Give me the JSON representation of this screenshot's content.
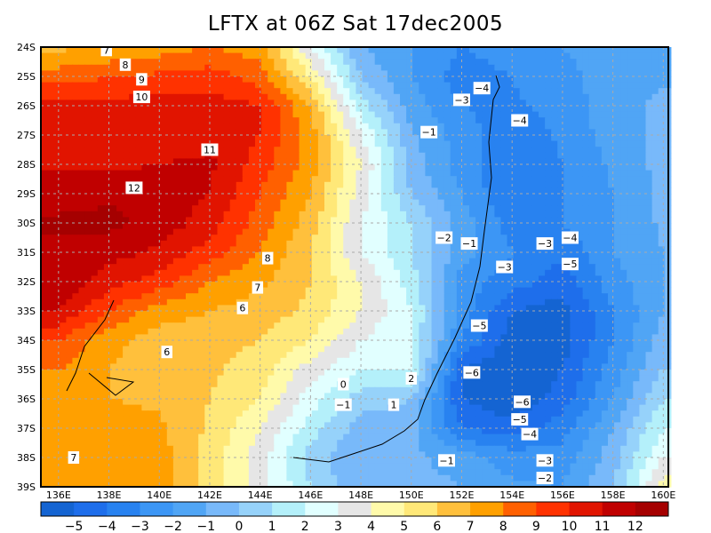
{
  "chart_data": {
    "type": "heatmap",
    "title": "LFTX at 06Z Sat 17dec2005",
    "xlabel": "",
    "ylabel": "",
    "xlim": [
      135.3,
      160.2
    ],
    "ylim": [
      24,
      39
    ],
    "grid": true,
    "x_ticks": [
      "136E",
      "138E",
      "140E",
      "142E",
      "144E",
      "146E",
      "148E",
      "150E",
      "152E",
      "154E",
      "156E",
      "158E",
      "160E"
    ],
    "y_ticks": [
      "24S",
      "25S",
      "26S",
      "27S",
      "28S",
      "29S",
      "30S",
      "31S",
      "32S",
      "33S",
      "34S",
      "35S",
      "36S",
      "37S",
      "38S",
      "39S"
    ],
    "grid_lon": [
      136,
      138,
      140,
      142,
      144,
      146,
      148,
      150,
      152,
      154,
      156,
      158,
      160
    ],
    "grid_lat": [
      24,
      25,
      26,
      27,
      28,
      29,
      30,
      31,
      32,
      33,
      34,
      35,
      36,
      37,
      38,
      39
    ],
    "values": [
      [
        6.8,
        7,
        7.5,
        8,
        7.5,
        3,
        -1,
        -2,
        -3,
        -2.5,
        -2,
        -1.5,
        -1.2
      ],
      [
        8.5,
        9,
        9.2,
        9.5,
        8.5,
        5,
        0,
        -2,
        -3.5,
        -3,
        -2.3,
        -1.5,
        -1.2
      ],
      [
        10.2,
        10.3,
        10.5,
        10.5,
        10,
        7,
        1.5,
        -1.5,
        -3,
        -3.2,
        -2.5,
        -1.5,
        -0.7
      ],
      [
        10.5,
        10.6,
        10.6,
        10.6,
        10,
        7.5,
        3,
        -0.8,
        -2.5,
        -3.8,
        -2.8,
        -1.5,
        -0.8
      ],
      [
        10.8,
        10.8,
        11,
        11.2,
        9.5,
        7.5,
        4,
        -0.5,
        -2.5,
        -4,
        -3,
        -1.8,
        -0.6
      ],
      [
        11.5,
        11.8,
        11.5,
        11,
        9,
        7,
        3.5,
        0,
        -2,
        -4,
        -3,
        -2,
        -0.8
      ],
      [
        12.2,
        12.3,
        11.6,
        10.5,
        8.5,
        6.5,
        3,
        1,
        -1.5,
        -3.5,
        -3,
        -2,
        -0.8
      ],
      [
        11.6,
        11.4,
        10.8,
        9.5,
        8,
        6,
        3,
        1,
        -1.5,
        -3,
        -3.8,
        -2,
        -1
      ],
      [
        11.7,
        10.5,
        9.5,
        8,
        7.2,
        6,
        4,
        1.5,
        -2.5,
        -3.5,
        -4.5,
        -2.5,
        -1
      ],
      [
        11,
        9,
        7.5,
        7,
        6.5,
        5.8,
        4,
        2,
        -2.5,
        -5,
        -5.5,
        -3,
        -1
      ],
      [
        9,
        7.3,
        6.5,
        6.3,
        6,
        5,
        3,
        2,
        -3,
        -5.5,
        -5.5,
        -3,
        -0.5
      ],
      [
        8,
        7,
        6.5,
        6.2,
        5.5,
        3.5,
        2,
        2.2,
        -5,
        -5.8,
        -5,
        -2.5,
        0
      ],
      [
        7.5,
        7,
        6.8,
        6,
        5,
        2.5,
        0.5,
        0,
        -5,
        -6,
        -4.5,
        -2,
        1
      ],
      [
        7.2,
        7.5,
        7.2,
        5.8,
        4,
        1.5,
        -0.5,
        -0.5,
        -4,
        -4.5,
        -3.5,
        -1,
        2
      ],
      [
        7,
        7.5,
        7.5,
        5.5,
        3.5,
        0.5,
        -1,
        -0.8,
        -1.5,
        -2.5,
        -2.5,
        -0.5,
        3
      ],
      [
        7.5,
        8,
        7.5,
        5.5,
        3.5,
        1,
        -0.8,
        -0.5,
        -1,
        -1.8,
        -2,
        0,
        4.5
      ]
    ],
    "levels": [
      -5,
      -4,
      -3,
      -2,
      -1,
      0,
      1,
      2,
      3,
      4,
      5,
      6,
      7,
      8,
      9,
      10,
      11,
      12
    ],
    "level_labels": [
      "−5",
      "−4",
      "−3",
      "−2",
      "−1",
      "0",
      "1",
      "2",
      "3",
      "4",
      "5",
      "6",
      "7",
      "8",
      "9",
      "10",
      "11",
      "12"
    ],
    "colors": [
      "#1464d2",
      "#1e6eeb",
      "#2882f0",
      "#3c96f5",
      "#50a5f5",
      "#78b9fa",
      "#96d2fa",
      "#b4f0fa",
      "#e1ffff",
      "#e6e6e6",
      "#fffaaa",
      "#ffe878",
      "#ffc03c",
      "#ffa000",
      "#ff6000",
      "#ff3200",
      "#e11400",
      "#c00000",
      "#a50000"
    ],
    "contour_labels": [
      {
        "text": "7",
        "lon": 137.9,
        "lat": 24.1
      },
      {
        "text": "8",
        "lon": 138.65,
        "lat": 24.6
      },
      {
        "text": "9",
        "lon": 139.3,
        "lat": 25.1
      },
      {
        "text": "10",
        "lon": 139.3,
        "lat": 25.7
      },
      {
        "text": "11",
        "lon": 142.0,
        "lat": 27.5
      },
      {
        "text": "12",
        "lon": 139.0,
        "lat": 28.8
      },
      {
        "text": "8",
        "lon": 144.3,
        "lat": 31.2
      },
      {
        "text": "7",
        "lon": 143.9,
        "lat": 32.2
      },
      {
        "text": "6",
        "lon": 143.3,
        "lat": 32.9
      },
      {
        "text": "6",
        "lon": 140.3,
        "lat": 34.4
      },
      {
        "text": "7",
        "lon": 136.6,
        "lat": 38.0
      },
      {
        "text": "0",
        "lon": 147.3,
        "lat": 35.5
      },
      {
        "text": "−1",
        "lon": 147.3,
        "lat": 36.2
      },
      {
        "text": "1",
        "lon": 149.3,
        "lat": 36.2
      },
      {
        "text": "2",
        "lon": 150.0,
        "lat": 35.3
      },
      {
        "text": "−1",
        "lon": 150.7,
        "lat": 26.9
      },
      {
        "text": "−3",
        "lon": 152.0,
        "lat": 25.8
      },
      {
        "text": "−4",
        "lon": 152.8,
        "lat": 25.4
      },
      {
        "text": "−4",
        "lon": 154.3,
        "lat": 26.5
      },
      {
        "text": "−2",
        "lon": 151.3,
        "lat": 30.5
      },
      {
        "text": "−1",
        "lon": 152.3,
        "lat": 30.7
      },
      {
        "text": "−3",
        "lon": 155.3,
        "lat": 30.7
      },
      {
        "text": "−4",
        "lon": 156.3,
        "lat": 30.5
      },
      {
        "text": "−5",
        "lon": 156.3,
        "lat": 31.4
      },
      {
        "text": "−3",
        "lon": 153.7,
        "lat": 31.5
      },
      {
        "text": "−5",
        "lon": 152.7,
        "lat": 33.5
      },
      {
        "text": "−6",
        "lon": 152.4,
        "lat": 35.1
      },
      {
        "text": "−6",
        "lon": 154.4,
        "lat": 36.1
      },
      {
        "text": "−5",
        "lon": 154.3,
        "lat": 36.7
      },
      {
        "text": "−4",
        "lon": 154.7,
        "lat": 37.2
      },
      {
        "text": "−3",
        "lon": 155.3,
        "lat": 38.1
      },
      {
        "text": "−2",
        "lon": 155.3,
        "lat": 38.7
      },
      {
        "text": "−1",
        "lon": 151.4,
        "lat": 38.1
      }
    ]
  }
}
